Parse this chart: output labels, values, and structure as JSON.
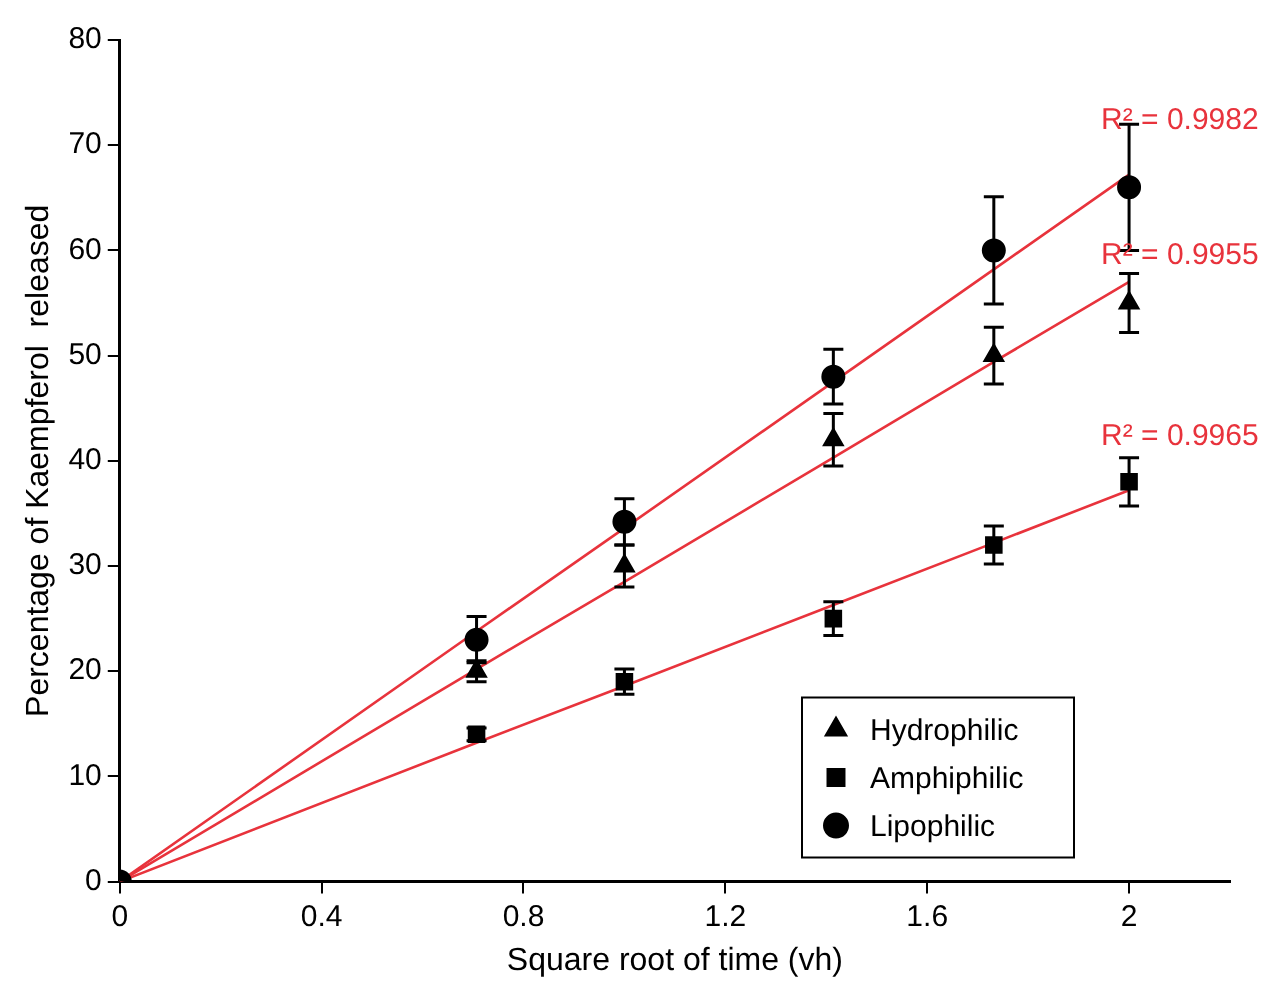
{
  "chart_data": {
    "type": "scatter",
    "xlabel": "Square root of time (vh)",
    "ylabel": "Percentage of Kaempferol  released",
    "x": [
      0,
      0.707,
      1,
      1.414,
      1.732,
      2
    ],
    "series": [
      {
        "name": "Hydrophilic",
        "color": "#000000",
        "marker": "triangle",
        "values": [
          null,
          20,
          30,
          42,
          50,
          55
        ],
        "errors": [
          null,
          1,
          2,
          2.5,
          2.7,
          2.8
        ]
      },
      {
        "name": "Amphiphilic",
        "color": "#000000",
        "marker": "square",
        "values": [
          null,
          14,
          19,
          25,
          32,
          38
        ],
        "errors": [
          null,
          0.6,
          1.2,
          1.6,
          1.8,
          2.3
        ]
      },
      {
        "name": "Lipophilic",
        "color": "#000000",
        "marker": "circle",
        "values": [
          0,
          23,
          34.2,
          48,
          60,
          66
        ],
        "errors": [
          null,
          2.2,
          2.2,
          2.6,
          5.1,
          6
        ]
      },
      {
        "type": "line",
        "color": "#e8333c",
        "values": [
          0,
          23.8,
          33.6,
          47.5,
          58.2,
          67.2
        ]
      },
      {
        "type": "line",
        "color": "#e8333c",
        "values": [
          0,
          20.2,
          28.5,
          40.3,
          49.4,
          57
        ]
      },
      {
        "type": "line",
        "color": "#e8333c",
        "values": [
          0,
          13.2,
          18.6,
          26.3,
          32.2,
          37.2
        ]
      }
    ],
    "annotations": [
      "R² = 0.9982",
      "R² = 0.9955",
      "R² = 0.9965"
    ],
    "xlim": [
      0,
      2.2
    ],
    "xticks": [
      0,
      0.4,
      0.8,
      1.2,
      1.6,
      2
    ],
    "ylim": [
      0,
      80
    ],
    "yticks": [
      0,
      10,
      20,
      30,
      40,
      50,
      60,
      70,
      80
    ],
    "grid": false,
    "legend": "bottom right",
    "line_style": "solid"
  }
}
